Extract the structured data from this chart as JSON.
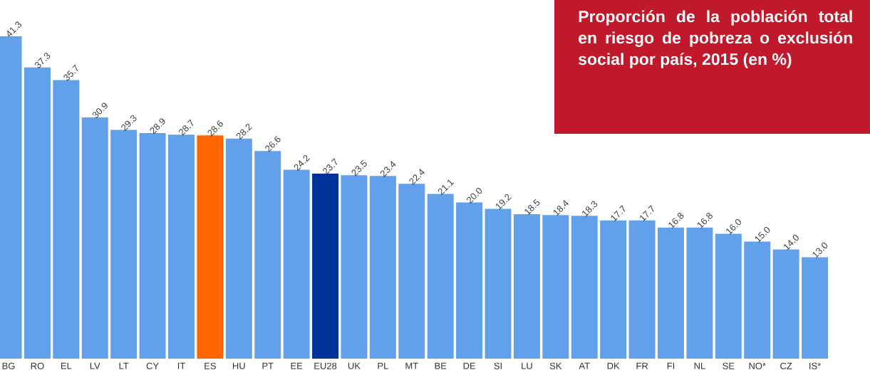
{
  "chart_data": {
    "type": "bar",
    "title": "Proporción de la población total en riesgo de pobreza o exclusión social por país, 2015 (en %)",
    "categories": [
      "BG",
      "RO",
      "EL",
      "LV",
      "LT",
      "CY",
      "IT",
      "ES",
      "HU",
      "PT",
      "EE",
      "EU28",
      "UK",
      "PL",
      "MT",
      "BE",
      "DE",
      "SI",
      "LU",
      "SK",
      "AT",
      "DK",
      "FR",
      "FI",
      "NL",
      "SE",
      "NO*",
      "CZ",
      "IS*"
    ],
    "values": [
      41.3,
      37.3,
      35.7,
      30.9,
      29.3,
      28.9,
      28.7,
      28.6,
      28.2,
      26.6,
      24.2,
      23.7,
      23.5,
      23.4,
      22.4,
      21.1,
      20.0,
      19.2,
      18.5,
      18.4,
      18.3,
      17.7,
      17.7,
      16.8,
      16.8,
      16.0,
      15.0,
      14.0,
      13.0
    ],
    "colors": [
      "#63a0ec",
      "#63a0ec",
      "#63a0ec",
      "#63a0ec",
      "#63a0ec",
      "#63a0ec",
      "#63a0ec",
      "#ff6600",
      "#63a0ec",
      "#63a0ec",
      "#63a0ec",
      "#003399",
      "#63a0ec",
      "#63a0ec",
      "#63a0ec",
      "#63a0ec",
      "#63a0ec",
      "#63a0ec",
      "#63a0ec",
      "#63a0ec",
      "#63a0ec",
      "#63a0ec",
      "#63a0ec",
      "#63a0ec",
      "#63a0ec",
      "#63a0ec",
      "#63a0ec",
      "#63a0ec",
      "#63a0ec"
    ],
    "value_labels": [
      "41.3",
      "37.3",
      "35.7",
      "30.9",
      "29.3",
      "28.9",
      "28.7",
      "28.6",
      "28.2",
      "26.6",
      "24.2",
      "23.7",
      "23.5",
      "23.4",
      "22.4",
      "21.1",
      "20.0",
      "19.2",
      "18.5",
      "18.4",
      "18.3",
      "17.7",
      "17.7",
      "16.8",
      "16.8",
      "16.0",
      "15.0",
      "14.0",
      "13.0"
    ]
  }
}
